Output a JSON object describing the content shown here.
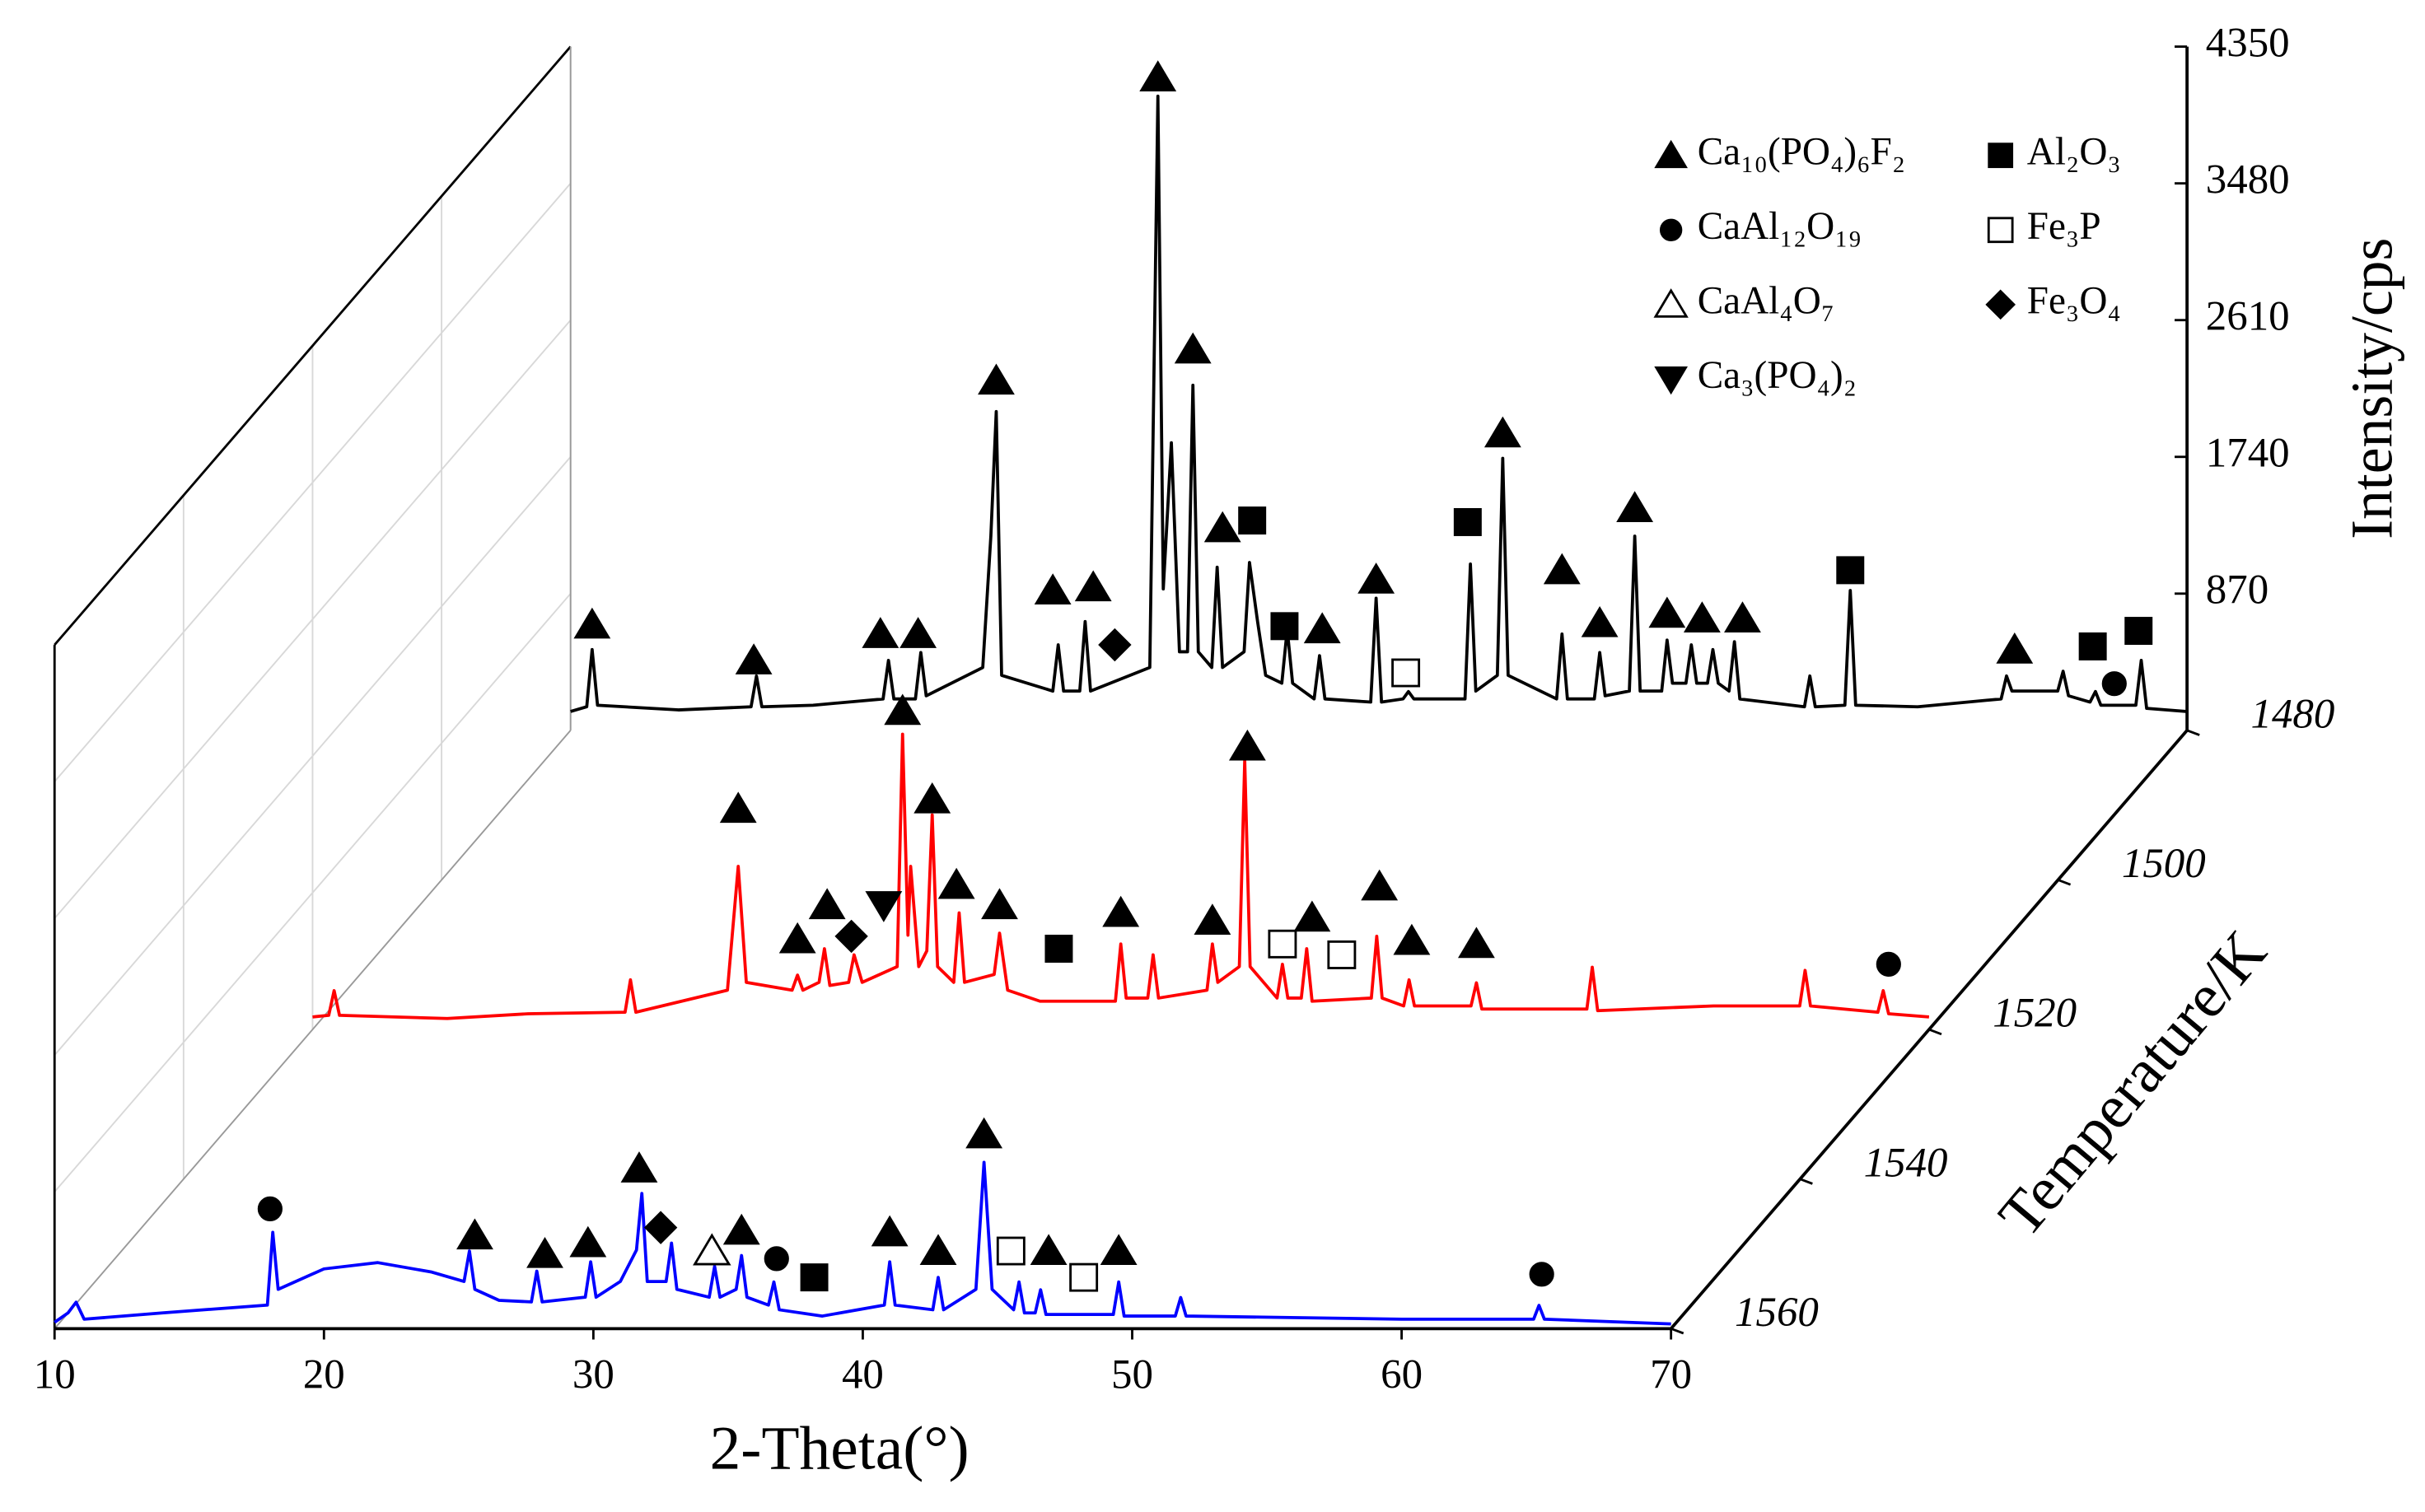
{
  "chart_data": {
    "type": "line",
    "xlabel": "2-Theta(°)",
    "ylabel": "Intensity/cps",
    "zlabel": "Temperature/K",
    "xlim": [
      10,
      70
    ],
    "xticks": [
      10,
      20,
      30,
      40,
      50,
      60,
      70
    ],
    "ylim": [
      0,
      4350
    ],
    "yticks": [
      870,
      1740,
      2610,
      3480,
      4350
    ],
    "zlim": [
      1560,
      1480
    ],
    "zticks": [
      1480,
      1500,
      1520,
      1540,
      1560
    ],
    "grid": true,
    "legend": "upper right",
    "phases": [
      {
        "name": "Ca₁₀(PO₄)₆F₂",
        "marker": "triangle"
      },
      {
        "name": "CaAl₁₂O₁₉",
        "marker": "circle"
      },
      {
        "name": "CaAl₄O₇",
        "marker": "triangle-open"
      },
      {
        "name": "Ca₃(PO₄)₂",
        "marker": "triangle-down"
      },
      {
        "name": "Al₂O₃",
        "marker": "square"
      },
      {
        "name": "Fe₃P",
        "marker": "square-open"
      },
      {
        "name": "Fe₃O₄",
        "marker": "diamond"
      }
    ],
    "series": [
      {
        "temperature": 1480,
        "color": "#000000",
        "x": [
          10,
          10.6,
          10.8,
          11.0,
          14,
          16.7,
          16.9,
          17.1,
          19,
          21.6,
          21.8,
          22.0,
          22.8,
          23.0,
          23.2,
          25.3,
          25.6,
          25.8,
          26.0,
          27.9,
          28.1,
          28.3,
          28.9,
          29.1,
          29.3,
          31.5,
          31.8,
          32.0,
          32.3,
          32.6,
          32.9,
          33.1,
          33.3,
          33.8,
          34.0,
          34.2,
          35.0,
          35.2,
          35.5,
          35.8,
          36.4,
          36.6,
          36.8,
          37.6,
          37.8,
          38.0,
          39.7,
          39.9,
          40.1,
          40.9,
          41.1,
          41.3,
          43.2,
          43.4,
          43.6,
          44.4,
          44.6,
          44.8,
          46.6,
          46.8,
          47.0,
          48.0,
          48.2,
          48.4,
          49.3,
          49.5,
          49.7,
          50.5,
          50.7,
          50.9,
          51.4,
          51.6,
          51.8,
          52.2,
          52.4,
          52.6,
          53.0,
          53.2,
          53.4,
          55.8,
          56.0,
          56.2,
          57.3,
          57.5,
          57.7,
          60,
          63.1,
          63.3,
          63.5,
          65.2,
          65.4,
          65.6,
          66.4,
          66.6,
          66.8,
          68.1,
          68.3,
          68.5,
          70
        ],
        "values": [
          120,
          150,
          514,
          160,
          130,
          150,
          346,
          150,
          160,
          200,
          445,
          200,
          200,
          495,
          220,
          400,
          1236,
          2028,
          350,
          250,
          544,
          250,
          250,
          692,
          250,
          400,
          4035,
          900,
          1830,
          500,
          500,
          2196,
          500,
          400,
          1038,
          400,
          500,
          1068,
          692,
          350,
          300,
          643,
          300,
          200,
          475,
          200,
          180,
          841,
          180,
          200,
          247,
          200,
          200,
          1058,
          250,
          350,
          1731,
          350,
          200,
          613,
          200,
          200,
          495,
          220,
          250,
          1236,
          250,
          250,
          574,
          300,
          300,
          544,
          300,
          300,
          514,
          300,
          250,
          564,
          200,
          150,
          346,
          150,
          160,
          890,
          160,
          150,
          200,
          346,
          250,
          250,
          376,
          220,
          180,
          247,
          160,
          160,
          445,
          140,
          120
        ],
        "markers": {
          "phase": [
            0,
            0,
            0,
            0,
            0,
            0,
            0,
            6,
            0,
            0,
            0,
            4,
            4,
            0,
            0,
            5,
            4,
            0,
            0,
            0,
            0,
            0,
            0,
            0,
            4,
            0,
            4,
            4,
            1
          ],
          "x": [
            10.8,
            16.8,
            21.5,
            22.9,
            25.8,
            27.9,
            29.4,
            30.2,
            31.8,
            33.1,
            34.2,
            35.3,
            36.5,
            37.9,
            39.9,
            41.0,
            43.3,
            44.6,
            46.8,
            48.2,
            49.5,
            50.7,
            52.0,
            53.5,
            57.5,
            63.6,
            66.5,
            68.2,
            67.3
          ],
          "y": [
            673,
            445,
            613,
            613,
            2225,
            890,
            910,
            544,
            4154,
            2423,
            1286,
            1335,
            663,
            643,
            959,
            366,
            1325,
            1889,
            1019,
            682,
            1414,
            742,
            712,
            712,
            1019,
            514,
            534,
            633,
            297
          ]
        }
      },
      {
        "temperature": 1520,
        "color": "#ff0000",
        "x": [
          10,
          10.6,
          10.8,
          11.0,
          15,
          18,
          21.6,
          21.8,
          22.0,
          25.4,
          25.8,
          26.1,
          27.8,
          28.0,
          28.2,
          28.8,
          29.0,
          29.2,
          29.9,
          30.1,
          30.4,
          31.7,
          31.9,
          32.1,
          32.2,
          32.5,
          32.8,
          33.0,
          33.2,
          33.8,
          34.0,
          34.2,
          35.3,
          35.5,
          35.8,
          37,
          39.8,
          40.0,
          40.2,
          41.0,
          41.2,
          41.4,
          43.2,
          43.4,
          43.6,
          44.4,
          44.6,
          44.8,
          45.8,
          46.0,
          46.2,
          46.7,
          46.9,
          47.1,
          49.3,
          49.5,
          49.7,
          50.5,
          50.7,
          50.9,
          53.0,
          53.2,
          53.4,
          57.3,
          57.5,
          57.7,
          62,
          65.2,
          65.4,
          65.6,
          68.1,
          68.3,
          68.5,
          70
        ],
        "values": [
          80,
          90,
          247,
          90,
          70,
          100,
          110,
          316,
          110,
          250,
          1038,
          300,
          250,
          346,
          250,
          300,
          514,
          280,
          300,
          475,
          300,
          400,
          1879,
          600,
          1038,
          400,
          500,
          1365,
          400,
          300,
          742,
          300,
          350,
          613,
          250,
          180,
          180,
          544,
          200,
          200,
          475,
          200,
          250,
          544,
          300,
          400,
          1711,
          400,
          200,
          415,
          200,
          200,
          514,
          180,
          200,
          593,
          200,
          150,
          316,
          150,
          150,
          297,
          130,
          130,
          396,
          120,
          150,
          150,
          376,
          150,
          110,
          247,
          100,
          80
        ],
        "markers": {
          "phase": [
            0,
            0,
            0,
            6,
            3,
            0,
            0,
            0,
            0,
            4,
            0,
            0,
            0,
            5,
            0,
            5,
            0,
            0,
            0,
            1
          ],
          "x": [
            25.8,
            28.0,
            29.1,
            30.0,
            31.2,
            31.9,
            33.0,
            33.9,
            35.5,
            37.7,
            40.0,
            43.4,
            44.7,
            46.0,
            47.1,
            48.2,
            49.6,
            50.8,
            53.2,
            68.5
          ],
          "y": [
            1404,
            574,
            791,
            593,
            791,
            2027,
            1464,
            920,
            791,
            514,
            742,
            692,
            1800,
            544,
            712,
            475,
            910,
            564,
            544,
            415
          ]
        }
      },
      {
        "temperature": 1560,
        "color": "#0000ff",
        "x": [
          10,
          10.5,
          10.8,
          11.1,
          14,
          17.9,
          18.1,
          18.3,
          20,
          22,
          24,
          25.2,
          25.4,
          25.6,
          26.5,
          27.7,
          27.9,
          28.1,
          29.7,
          29.9,
          30.1,
          31.0,
          31.6,
          31.8,
          32.0,
          32.7,
          32.9,
          33.1,
          34.3,
          34.5,
          34.7,
          35.3,
          35.5,
          35.7,
          36.5,
          36.7,
          36.9,
          38.5,
          40.8,
          41.0,
          41.2,
          42.6,
          42.8,
          43.0,
          44.2,
          44.5,
          44.8,
          45.6,
          45.8,
          46.0,
          46.4,
          46.6,
          46.8,
          49.3,
          49.5,
          49.7,
          51.6,
          51.8,
          52.0,
          60,
          64.9,
          65.1,
          65.3,
          70
        ],
        "values": [
          40,
          100,
          168,
          60,
          100,
          150,
          613,
          250,
          380,
          420,
          360,
          300,
          494,
          250,
          180,
          170,
          366,
          170,
          200,
          425,
          200,
          300,
          500,
          860,
          300,
          300,
          544,
          250,
          200,
          396,
          200,
          250,
          465,
          200,
          150,
          297,
          120,
          80,
          150,
          425,
          150,
          120,
          326,
          120,
          250,
          1058,
          250,
          120,
          297,
          100,
          100,
          247,
          90,
          90,
          297,
          80,
          80,
          198,
          80,
          60,
          60,
          148,
          60,
          30
        ],
        "markers": {
          "phase": [
            1,
            0,
            0,
            0,
            0,
            6,
            2,
            0,
            1,
            4,
            0,
            0,
            0,
            5,
            0,
            5,
            0,
            1
          ],
          "x": [
            18.0,
            25.6,
            28.2,
            29.8,
            31.7,
            32.5,
            34.4,
            35.5,
            36.8,
            38.2,
            41.0,
            42.8,
            44.5,
            45.5,
            46.9,
            48.2,
            49.5,
            65.2
          ],
          "y": [
            762,
            593,
            475,
            544,
            1019,
            643,
            494,
            623,
            445,
            326,
            613,
            494,
            1236,
            494,
            494,
            326,
            494,
            346
          ]
        }
      }
    ]
  }
}
